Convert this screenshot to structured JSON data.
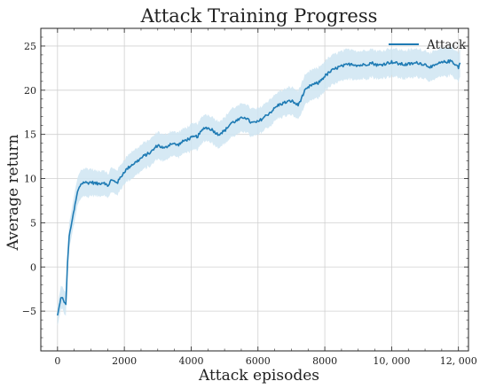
{
  "chart_data": {
    "type": "line",
    "title": "Attack Training Progress",
    "xlabel": "Attack episodes",
    "ylabel": "Average return",
    "xlim": [
      -500,
      12300
    ],
    "ylim": [
      -9.5,
      27
    ],
    "xticks": [
      0,
      2000,
      4000,
      6000,
      8000,
      10000,
      12000
    ],
    "xtick_labels": [
      "0",
      "2000",
      "4000",
      "6000",
      "8000",
      "10, 000",
      "12, 000"
    ],
    "yticks": [
      -5,
      0,
      5,
      10,
      15,
      20,
      25
    ],
    "ytick_labels": [
      "−5",
      "0",
      "5",
      "10",
      "15",
      "20",
      "25"
    ],
    "grid": true,
    "legend_position": "top-right",
    "colors": {
      "line": "#1f7bb4",
      "band": "#cfe5f2"
    },
    "series": [
      {
        "name": "Attack",
        "x": [
          0,
          50,
          100,
          150,
          200,
          250,
          300,
          350,
          400,
          500,
          600,
          700,
          800,
          900,
          1000,
          1200,
          1400,
          1500,
          1600,
          1800,
          2000,
          2200,
          2400,
          2600,
          2800,
          3000,
          3200,
          3400,
          3600,
          3800,
          4000,
          4200,
          4400,
          4600,
          4800,
          5000,
          5200,
          5400,
          5600,
          5800,
          6000,
          6200,
          6400,
          6600,
          6800,
          7000,
          7200,
          7400,
          7600,
          7800,
          8000,
          8200,
          8400,
          8600,
          8800,
          9000,
          9200,
          9400,
          9600,
          9800,
          10000,
          10200,
          10400,
          10600,
          10800,
          11000,
          11200,
          11400,
          11600,
          11800,
          12000,
          12050
        ],
        "y": [
          -5.5,
          -4.5,
          -3.5,
          -3.5,
          -4.0,
          -4.2,
          0.5,
          3.5,
          4.5,
          6.5,
          8.5,
          9.4,
          9.6,
          9.5,
          9.6,
          9.4,
          9.6,
          9.1,
          9.8,
          9.6,
          10.8,
          11.5,
          12.0,
          12.6,
          13.0,
          13.8,
          13.4,
          14.0,
          13.8,
          14.3,
          14.6,
          14.8,
          15.8,
          15.6,
          15.0,
          15.4,
          16.3,
          16.6,
          17.0,
          16.3,
          16.4,
          17.0,
          17.6,
          18.3,
          18.6,
          18.8,
          18.3,
          19.9,
          20.6,
          20.8,
          21.6,
          22.2,
          22.6,
          22.8,
          23.0,
          22.8,
          22.9,
          23.1,
          22.8,
          23.0,
          23.2,
          23.0,
          22.9,
          23.0,
          23.1,
          22.9,
          22.6,
          23.0,
          23.2,
          23.3,
          22.6,
          23.1
        ],
        "ci_halfwidth": [
          1.2,
          1.2,
          1.3,
          1.3,
          1.3,
          1.3,
          1.5,
          1.5,
          1.5,
          1.6,
          1.6,
          1.6,
          1.6,
          1.6,
          1.5,
          1.4,
          1.4,
          1.3,
          1.4,
          1.4,
          1.4,
          1.5,
          1.5,
          1.5,
          1.5,
          1.5,
          1.5,
          1.4,
          1.4,
          1.4,
          1.5,
          1.5,
          1.5,
          1.5,
          1.5,
          1.5,
          1.6,
          1.6,
          1.6,
          1.6,
          1.5,
          1.5,
          1.5,
          1.5,
          1.5,
          1.6,
          1.6,
          1.7,
          1.7,
          1.7,
          1.7,
          1.7,
          1.7,
          1.7,
          1.7,
          1.6,
          1.6,
          1.6,
          1.6,
          1.6,
          1.6,
          1.6,
          1.6,
          1.6,
          1.6,
          1.6,
          1.6,
          1.6,
          1.6,
          1.6,
          1.6,
          1.6
        ]
      }
    ]
  }
}
